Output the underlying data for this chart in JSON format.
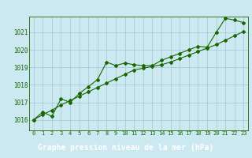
{
  "title": "Graphe pression niveau de la mer (hPa)",
  "bg_color": "#cce8f0",
  "grid_color": "#a8cdd8",
  "line_color": "#1a6600",
  "label_bg": "#2d6e2d",
  "label_fg": "#ffffff",
  "x_ticks": [
    0,
    1,
    2,
    3,
    4,
    5,
    6,
    7,
    8,
    9,
    10,
    11,
    12,
    13,
    14,
    15,
    16,
    17,
    18,
    19,
    20,
    21,
    22,
    23
  ],
  "ylim": [
    1015.4,
    1021.9
  ],
  "yticks": [
    1016,
    1017,
    1018,
    1019,
    1020,
    1021
  ],
  "line1_x": [
    0,
    1,
    2,
    3,
    4,
    5,
    6,
    7,
    8,
    9,
    10,
    11,
    12,
    13,
    14,
    15,
    16,
    17,
    18,
    19,
    20,
    21,
    22,
    23
  ],
  "line1_y": [
    1016.0,
    1016.45,
    1016.2,
    1017.2,
    1017.0,
    1017.5,
    1017.9,
    1018.3,
    1019.3,
    1019.1,
    1019.25,
    1019.15,
    1019.1,
    1019.1,
    1019.4,
    1019.6,
    1019.8,
    1020.0,
    1020.2,
    1020.15,
    1021.0,
    1021.8,
    1021.7,
    1021.55
  ],
  "line2_x": [
    0,
    1,
    2,
    3,
    4,
    5,
    6,
    7,
    8,
    9,
    10,
    11,
    12,
    13,
    14,
    15,
    16,
    17,
    18,
    19,
    20,
    21,
    22,
    23
  ],
  "line2_y": [
    1016.0,
    1016.3,
    1016.55,
    1016.85,
    1017.1,
    1017.35,
    1017.6,
    1017.85,
    1018.1,
    1018.35,
    1018.6,
    1018.85,
    1018.95,
    1019.05,
    1019.15,
    1019.3,
    1019.5,
    1019.7,
    1019.9,
    1020.1,
    1020.3,
    1020.55,
    1020.8,
    1021.05
  ]
}
